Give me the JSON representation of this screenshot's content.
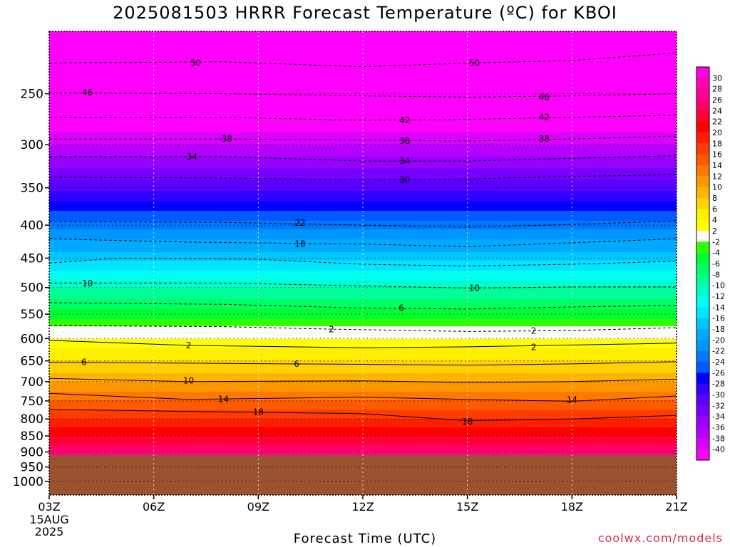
{
  "page": {
    "title": "2025081503 HRRR Forecast Temperature (ºC) for KBOI",
    "xlabel": "Forecast Time (UTC)",
    "credit": "coolwx.com/models"
  },
  "chart_data": {
    "type": "heatmap",
    "title": "2025081503 HRRR Forecast Temperature (ºC) for KBOI",
    "xlabel": "Forecast Time (UTC)",
    "ylabel": "",
    "x_ticks": [
      "03Z",
      "06Z",
      "09Z",
      "12Z",
      "15Z",
      "18Z",
      "21Z"
    ],
    "x_date_label": [
      "15AUG",
      "2025"
    ],
    "x_range_hours": [
      3,
      21
    ],
    "y_ticks": [
      250,
      300,
      350,
      400,
      450,
      500,
      550,
      600,
      650,
      700,
      750,
      800,
      850,
      900,
      950,
      1000
    ],
    "y_range_hpa": [
      200,
      1050
    ],
    "y_scale": "log",
    "ground_level_hpa": 910,
    "grid": "dotted",
    "colorbar": {
      "labels": [
        30,
        28,
        26,
        24,
        22,
        20,
        18,
        16,
        14,
        12,
        10,
        8,
        6,
        4,
        2,
        -2,
        -4,
        -6,
        -8,
        -10,
        -12,
        -14,
        -16,
        -18,
        -20,
        -22,
        -24,
        -26,
        -28,
        -30,
        -32,
        -34,
        -36,
        -38,
        -40
      ],
      "colors": [
        "#ff00e6",
        "#ff00b4",
        "#ff0096",
        "#ff0064",
        "#ff0032",
        "#ff0000",
        "#ff1e00",
        "#ff3c00",
        "#ff5a00",
        "#ff7800",
        "#ff9600",
        "#ffb400",
        "#ffd200",
        "#fff000",
        "#ffff00",
        "#ffffff",
        "#32ff00",
        "#00ff32",
        "#00ff64",
        "#00ff96",
        "#00ffc8",
        "#00fff0",
        "#00e6ff",
        "#00c8ff",
        "#00aaff",
        "#0096ff",
        "#0078ff",
        "#005aff",
        "#0000ff",
        "#3200ff",
        "#5a00ff",
        "#7800ff",
        "#9600ff",
        "#b400ff",
        "#dc00ff",
        "#ff00ff"
      ]
    },
    "profile": {
      "pressure_hpa": [
        200,
        225,
        250,
        275,
        300,
        320,
        340,
        360,
        380,
        400,
        420,
        440,
        460,
        480,
        500,
        520,
        540,
        560,
        575,
        590,
        600,
        620,
        640,
        660,
        680,
        700,
        725,
        750,
        775,
        800,
        825,
        850,
        875,
        900,
        910
      ],
      "temperature_c": [
        -53,
        -50,
        -46,
        -42,
        -38,
        -35,
        -32,
        -29,
        -26,
        -23,
        -20,
        -18,
        -15,
        -13,
        -10,
        -8,
        -6,
        -4,
        -2,
        0,
        2,
        4,
        5,
        7,
        8,
        10,
        12,
        14,
        16,
        18,
        20,
        22,
        24,
        26,
        27
      ]
    },
    "contours": [
      {
        "value": -50,
        "x": [
          3,
          8,
          12,
          15,
          18,
          21
        ],
        "p": [
          224,
          223,
          227,
          224,
          222,
          216
        ]
      },
      {
        "value": -46,
        "x": [
          3,
          8,
          12,
          15,
          18,
          21
        ],
        "p": [
          249,
          250,
          252,
          253,
          252,
          250
        ]
      },
      {
        "value": -42,
        "x": [
          3,
          8,
          12,
          15,
          18,
          21
        ],
        "p": [
          272,
          272,
          275,
          274,
          272,
          270
        ]
      },
      {
        "value": -38,
        "x": [
          3,
          8,
          12,
          15,
          18,
          21
        ],
        "p": [
          294,
          294,
          295,
          296,
          294,
          291
        ]
      },
      {
        "value": -34,
        "x": [
          3,
          8,
          12,
          15,
          18,
          21
        ],
        "p": [
          313,
          313,
          318,
          318,
          315,
          312
        ]
      },
      {
        "value": -30,
        "x": [
          3,
          8,
          12,
          15,
          18,
          21
        ],
        "p": [
          337,
          338,
          340,
          339,
          336,
          334
        ]
      },
      {
        "value": -22,
        "x": [
          3,
          8,
          12,
          15,
          18,
          21
        ],
        "p": [
          395,
          396,
          400,
          403,
          399,
          394
        ]
      },
      {
        "value": -18,
        "x": [
          3,
          7,
          12,
          15,
          18,
          21
        ],
        "p": [
          420,
          425,
          428,
          432,
          426,
          420
        ]
      },
      {
        "value": -14,
        "x": [
          3,
          5,
          9,
          12,
          15,
          18,
          21
        ],
        "p": [
          458,
          450,
          452,
          460,
          463,
          460,
          455
        ]
      },
      {
        "value": -10,
        "x": [
          3,
          8,
          12,
          15,
          18,
          21
        ],
        "p": [
          492,
          492,
          497,
          501,
          499,
          499
        ]
      },
      {
        "value": -6,
        "x": [
          3,
          8,
          12,
          15,
          18,
          21
        ],
        "p": [
          528,
          531,
          538,
          540,
          536,
          533
        ]
      },
      {
        "value": -2,
        "x": [
          3,
          8,
          11,
          15,
          18,
          21
        ],
        "p": [
          573,
          575,
          580,
          585,
          583,
          577
        ]
      },
      {
        "value": 2,
        "x": [
          3,
          7,
          12,
          15,
          18,
          21
        ],
        "p": [
          604,
          615,
          620,
          618,
          614,
          610
        ]
      },
      {
        "value": 6,
        "x": [
          3,
          8,
          12,
          15,
          18,
          21
        ],
        "p": [
          653,
          656,
          658,
          660,
          657,
          652
        ]
      },
      {
        "value": 10,
        "x": [
          3,
          7,
          12,
          15,
          18,
          21
        ],
        "p": [
          692,
          700,
          698,
          702,
          700,
          694
        ]
      },
      {
        "value": 14,
        "x": [
          3,
          7,
          12,
          15,
          18,
          21
        ],
        "p": [
          730,
          746,
          740,
          746,
          751,
          737
        ]
      },
      {
        "value": 18,
        "x": [
          3,
          8,
          12,
          15,
          18,
          21
        ],
        "p": [
          773,
          780,
          785,
          805,
          800,
          790
        ]
      }
    ],
    "contour_labels": [
      {
        "text": "50",
        "x": 7.2,
        "p": 224
      },
      {
        "text": "50",
        "x": 15.2,
        "p": 224
      },
      {
        "text": "46",
        "x": 4.1,
        "p": 249
      },
      {
        "text": "46",
        "x": 17.2,
        "p": 253
      },
      {
        "text": "42",
        "x": 13.2,
        "p": 275
      },
      {
        "text": "42",
        "x": 17.2,
        "p": 272
      },
      {
        "text": "38",
        "x": 8.1,
        "p": 294
      },
      {
        "text": "38",
        "x": 13.2,
        "p": 296
      },
      {
        "text": "38",
        "x": 17.2,
        "p": 294
      },
      {
        "text": "34",
        "x": 7.1,
        "p": 313
      },
      {
        "text": "34",
        "x": 13.2,
        "p": 318
      },
      {
        "text": "30",
        "x": 13.2,
        "p": 340
      },
      {
        "text": "22",
        "x": 10.2,
        "p": 397
      },
      {
        "text": "18",
        "x": 10.2,
        "p": 428
      },
      {
        "text": "10",
        "x": 4.1,
        "p": 493
      },
      {
        "text": "10",
        "x": 15.2,
        "p": 501
      },
      {
        "text": "6",
        "x": 13.1,
        "p": 538
      },
      {
        "text": "2",
        "x": 11.1,
        "p": 581
      },
      {
        "text": "2",
        "x": 16.9,
        "p": 584
      },
      {
        "text": "2",
        "x": 7.0,
        "p": 615
      },
      {
        "text": "2",
        "x": 16.9,
        "p": 619
      },
      {
        "text": "6",
        "x": 4.0,
        "p": 653
      },
      {
        "text": "6",
        "x": 10.1,
        "p": 657
      },
      {
        "text": "10",
        "x": 7.0,
        "p": 698
      },
      {
        "text": "14",
        "x": 8.0,
        "p": 745
      },
      {
        "text": "14",
        "x": 18.0,
        "p": 747
      },
      {
        "text": "18",
        "x": 9.0,
        "p": 780
      },
      {
        "text": "18",
        "x": 15.0,
        "p": 808
      }
    ]
  }
}
